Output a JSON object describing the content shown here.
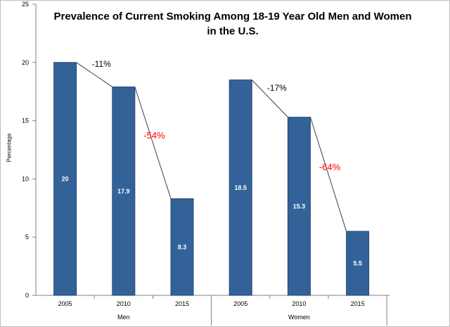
{
  "chart_data": {
    "type": "bar",
    "title_lines": [
      "Prevalence of Current Smoking Among 18-19 Year Old Men and Women",
      "in the U.S."
    ],
    "xlabel": "",
    "ylabel": "Percentage",
    "ylim": [
      0,
      25
    ],
    "yticks": [
      0,
      5,
      10,
      15,
      20,
      25
    ],
    "grid": false,
    "groups": [
      {
        "name": "Men",
        "categories": [
          "2005",
          "2010",
          "2015"
        ],
        "values": [
          20,
          17.9,
          8.3
        ],
        "value_labels": [
          "20",
          "17.9",
          "8.3"
        ],
        "changes": [
          {
            "label": "-11%",
            "color": "#000000"
          },
          {
            "label": "-54%",
            "color": "#ff0000"
          }
        ]
      },
      {
        "name": "Women",
        "categories": [
          "2005",
          "2010",
          "2015"
        ],
        "values": [
          18.5,
          15.3,
          5.5
        ],
        "value_labels": [
          "18.5",
          "15.3",
          "5.5"
        ],
        "changes": [
          {
            "label": "-17%",
            "color": "#000000"
          },
          {
            "label": "-64%",
            "color": "#ff0000"
          }
        ]
      }
    ],
    "bar_color": "#336299",
    "bar_edge_color": "#24487a"
  }
}
